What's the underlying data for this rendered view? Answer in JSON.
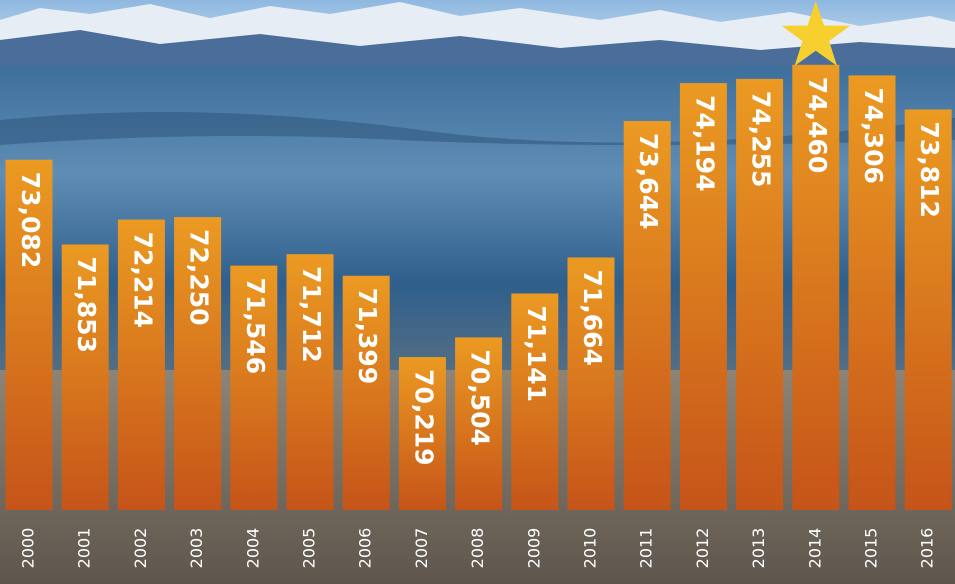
{
  "chart_data": {
    "type": "bar",
    "categories": [
      "2000",
      "2001",
      "2002",
      "2003",
      "2004",
      "2005",
      "2006",
      "2007",
      "2008",
      "2009",
      "2010",
      "2011",
      "2012",
      "2013",
      "2014",
      "2015",
      "2016"
    ],
    "values": [
      73082,
      71853,
      72214,
      72250,
      71546,
      71712,
      71399,
      70219,
      70504,
      71141,
      71664,
      73644,
      74194,
      74255,
      74460,
      74306,
      73812
    ],
    "value_labels": [
      "73,082",
      "71,853",
      "72,214",
      "72,250",
      "71,546",
      "71,712",
      "71,399",
      "70,219",
      "70,504",
      "71,141",
      "71,664",
      "73,644",
      "74,194",
      "74,255",
      "74,460",
      "74,306",
      "73,812"
    ],
    "color": "#e07d1c",
    "ylim": [
      68000,
      75400
    ]
  }
}
